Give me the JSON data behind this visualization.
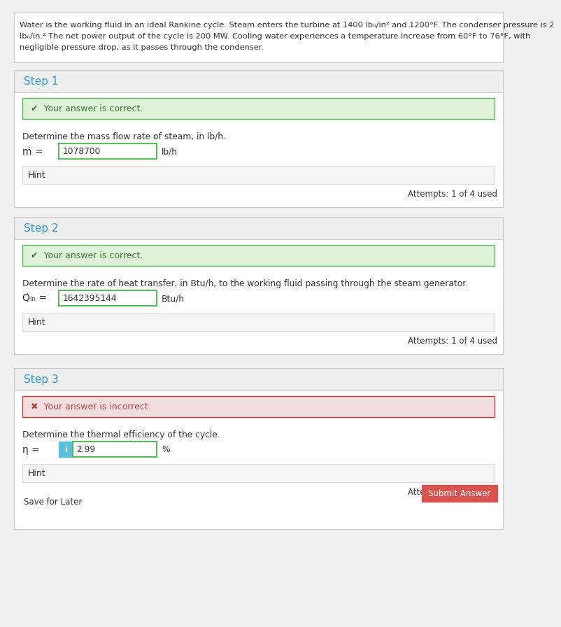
{
  "problem_text_lines": [
    "Water is the working fluid in an ideal Rankine cycle. Steam enters the turbine at 1400 lbₙ/in² and 1200°F. The condenser pressure is 2",
    "lbₙ/in.² The net power output of the cycle is 200 MW. Cooling water experiences a temperature increase from 60°F to 76°F, with",
    "negligible pressure drop, as it passes through the condenser."
  ],
  "steps": [
    {
      "step_label": "Step 1",
      "status": "correct",
      "status_text": "Your answer is correct.",
      "question": "Determine the mass flow rate of steam, in lb/h.",
      "var_symbol": "ṁ",
      "var_eq": " = ",
      "var_value": "1078700",
      "var_unit": "lb/h",
      "hint_text": "Hint",
      "attempts_text": "Attempts: 1 of 4 used",
      "has_info_btn": false,
      "has_submit": false,
      "has_save": false
    },
    {
      "step_label": "Step 2",
      "status": "correct",
      "status_text": "Your answer is correct.",
      "question": "Determine the rate of heat transfer, in Btu/h, to the working fluid passing through the steam generator.",
      "var_symbol": "Q̇ᵢₙ",
      "var_eq": " = ",
      "var_value": "1642395144",
      "var_unit": "Btu/h",
      "hint_text": "Hint",
      "attempts_text": "Attempts: 1 of 4 used",
      "has_info_btn": false,
      "has_submit": false,
      "has_save": false
    },
    {
      "step_label": "Step 3",
      "status": "incorrect",
      "status_text": "Your answer is incorrect.",
      "question": "Determine the thermal efficiency of the cycle.",
      "var_symbol": "η",
      "var_eq": " = ",
      "var_value": "2.99",
      "var_unit": "%",
      "hint_text": "Hint",
      "attempts_text": "Attempts: 1 of 4 used",
      "has_info_btn": true,
      "has_submit": true,
      "has_save": true,
      "submit_text": "Submit Answer",
      "save_text": "Save for Later"
    }
  ],
  "colors": {
    "page_bg": "#f0f0f0",
    "panel_bg": "#ffffff",
    "panel_border": "#cccccc",
    "step_header_bg": "#eeeeee",
    "step_header_border": "#cccccc",
    "step_label_color": "#3399cc",
    "correct_bg": "#dff0d8",
    "correct_border": "#5cb85c",
    "correct_text": "#3c763d",
    "incorrect_bg": "#f2dede",
    "incorrect_border": "#cc3333",
    "incorrect_text": "#a94442",
    "hint_bg": "#f5f5f5",
    "hint_border": "#dddddd",
    "input_border_correct": "#5cb85c",
    "input_border_incorrect": "#5cb85c",
    "text_dark": "#333333",
    "text_gray": "#555555",
    "info_btn_bg": "#5bc0de",
    "info_btn_text": "#ffffff",
    "submit_btn_bg": "#d9534f",
    "submit_btn_text": "#ffffff",
    "prob_bg": "#ffffff",
    "prob_border": "#cccccc"
  }
}
